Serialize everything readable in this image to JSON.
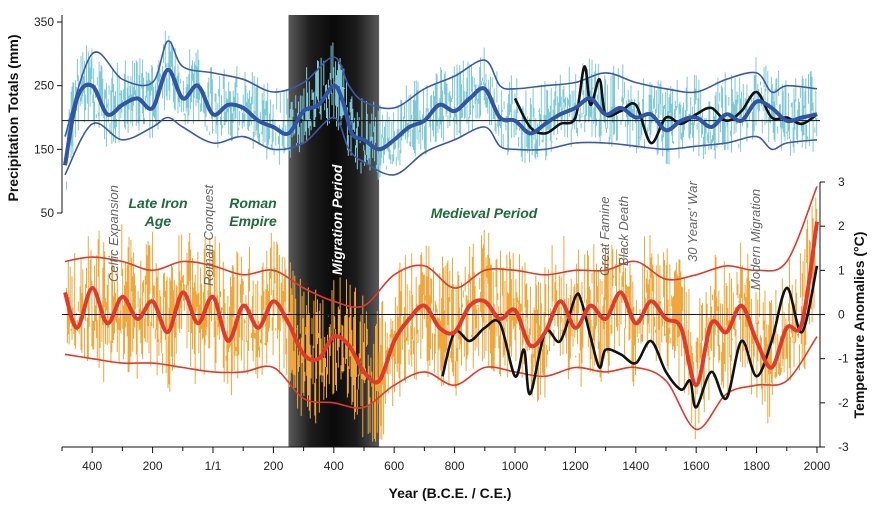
{
  "chart_data": {
    "type": "line",
    "title": "",
    "xlabel": "Year (B.C.E. / C.E.)",
    "x_ticks": [
      "400",
      "200",
      "1/1",
      "200",
      "400",
      "600",
      "800",
      "1000",
      "1200",
      "1400",
      "1600",
      "1800",
      "2000"
    ],
    "x_tick_years": [
      -400,
      -200,
      0,
      200,
      400,
      600,
      800,
      1000,
      1200,
      1400,
      1600,
      1800,
      2000
    ],
    "xlim": [
      -500,
      2010
    ],
    "precipitation": {
      "ylabel": "Precipitation Totals (mm)",
      "ylim": [
        50,
        350
      ],
      "y_ticks": [
        350,
        250,
        150,
        50
      ],
      "reference_line": 195,
      "series": [
        {
          "name": "Precipitation smoothed",
          "color": "#2f55a4",
          "x": [
            -490,
            -450,
            -400,
            -350,
            -300,
            -250,
            -200,
            -150,
            -100,
            -50,
            0,
            50,
            100,
            150,
            200,
            250,
            300,
            350,
            400,
            430,
            460,
            500,
            550,
            600,
            650,
            700,
            750,
            800,
            850,
            900,
            950,
            1000,
            1050,
            1100,
            1150,
            1200,
            1250,
            1300,
            1350,
            1400,
            1450,
            1500,
            1550,
            1600,
            1650,
            1700,
            1750,
            1800,
            1850,
            1900,
            1950,
            2000
          ],
          "values": [
            125,
            230,
            250,
            205,
            220,
            230,
            215,
            275,
            230,
            250,
            205,
            220,
            215,
            195,
            185,
            175,
            210,
            220,
            250,
            225,
            175,
            165,
            150,
            165,
            185,
            195,
            220,
            210,
            230,
            245,
            200,
            195,
            175,
            190,
            205,
            215,
            230,
            205,
            215,
            200,
            205,
            180,
            195,
            200,
            185,
            205,
            195,
            225,
            215,
            195,
            200,
            205
          ]
        },
        {
          "name": "Precipitation upper band",
          "color": "#3a5aa8",
          "x": [
            -490,
            -400,
            -300,
            -200,
            -150,
            -100,
            0,
            100,
            200,
            300,
            400,
            450,
            500,
            600,
            700,
            800,
            900,
            950,
            1000,
            1100,
            1200,
            1300,
            1400,
            1500,
            1600,
            1700,
            1800,
            1850,
            1900,
            2000
          ],
          "values": [
            170,
            300,
            260,
            255,
            320,
            280,
            270,
            260,
            240,
            255,
            295,
            250,
            225,
            215,
            245,
            265,
            290,
            250,
            245,
            250,
            255,
            270,
            255,
            245,
            240,
            260,
            270,
            240,
            250,
            245
          ]
        },
        {
          "name": "Precipitation lower band",
          "color": "#3a5aa8",
          "x": [
            -490,
            -400,
            -300,
            -200,
            -150,
            -100,
            0,
            100,
            200,
            300,
            400,
            450,
            500,
            600,
            700,
            800,
            900,
            950,
            1000,
            1100,
            1200,
            1300,
            1400,
            1500,
            1600,
            1700,
            1800,
            1850,
            1900,
            2000
          ],
          "values": [
            110,
            190,
            165,
            185,
            200,
            185,
            160,
            170,
            150,
            160,
            200,
            150,
            130,
            110,
            145,
            165,
            185,
            155,
            150,
            150,
            160,
            160,
            155,
            150,
            155,
            160,
            170,
            150,
            160,
            165
          ]
        },
        {
          "name": "Precipitation instrumental",
          "color": "#111111",
          "x": [
            1000,
            1050,
            1100,
            1150,
            1200,
            1230,
            1250,
            1280,
            1300,
            1350,
            1400,
            1450,
            1500,
            1550,
            1600,
            1650,
            1700,
            1750,
            1800,
            1850,
            1900,
            1950,
            2000
          ],
          "values": [
            230,
            185,
            175,
            190,
            200,
            280,
            220,
            260,
            205,
            210,
            220,
            160,
            200,
            190,
            205,
            215,
            195,
            210,
            240,
            200,
            200,
            190,
            205
          ]
        }
      ]
    },
    "temperature": {
      "ylabel": "Temperature Anomalies (°C)",
      "ylim": [
        -3,
        3
      ],
      "y_ticks": [
        3,
        2,
        1,
        0,
        -1,
        -2,
        -3
      ],
      "reference_line": 0,
      "series": [
        {
          "name": "Temperature smoothed",
          "color": "#e03a2a",
          "x": [
            -490,
            -450,
            -400,
            -350,
            -300,
            -250,
            -200,
            -150,
            -100,
            -50,
            0,
            50,
            100,
            150,
            200,
            250,
            300,
            350,
            400,
            450,
            500,
            550,
            600,
            650,
            700,
            750,
            800,
            850,
            900,
            950,
            1000,
            1050,
            1100,
            1150,
            1200,
            1250,
            1300,
            1350,
            1400,
            1450,
            1500,
            1550,
            1600,
            1650,
            1700,
            1750,
            1800,
            1850,
            1900,
            1950,
            2000
          ],
          "values": [
            0.5,
            -0.3,
            0.6,
            -0.2,
            0.4,
            -0.1,
            0.3,
            -0.4,
            0.5,
            -0.2,
            0.4,
            -0.6,
            0.2,
            -0.3,
            0.3,
            -0.2,
            -0.9,
            -1.0,
            -0.5,
            -0.7,
            -1.3,
            -1.5,
            -0.6,
            -0.1,
            0.2,
            -0.3,
            -0.4,
            0.2,
            0.3,
            -0.1,
            0.1,
            -0.7,
            -0.4,
            0.3,
            -0.3,
            0.2,
            -0.1,
            0.5,
            -0.2,
            0.3,
            -0.1,
            -0.3,
            -1.6,
            -0.2,
            -0.4,
            0.2,
            -0.6,
            -1.2,
            -0.3,
            -0.2,
            2.1
          ]
        },
        {
          "name": "Temperature upper band",
          "color": "#e03a2a",
          "x": [
            -490,
            -400,
            -300,
            -200,
            -100,
            0,
            100,
            200,
            300,
            400,
            500,
            600,
            700,
            800,
            900,
            1000,
            1100,
            1200,
            1300,
            1400,
            1500,
            1600,
            1700,
            1800,
            1900,
            2000
          ],
          "values": [
            1.2,
            1.3,
            1.2,
            1.0,
            1.2,
            1.1,
            0.9,
            1.0,
            0.6,
            0.3,
            0.2,
            0.9,
            1.1,
            0.6,
            1.0,
            1.0,
            0.9,
            1.0,
            1.0,
            1.2,
            0.8,
            0.9,
            1.1,
            1.0,
            1.2,
            2.9
          ]
        },
        {
          "name": "Temperature lower band",
          "color": "#e03a2a",
          "x": [
            -490,
            -400,
            -300,
            -200,
            -100,
            0,
            100,
            200,
            300,
            400,
            500,
            600,
            700,
            800,
            900,
            1000,
            1100,
            1200,
            1300,
            1400,
            1500,
            1600,
            1700,
            1800,
            1900,
            2000
          ],
          "values": [
            -0.9,
            -1.0,
            -1.1,
            -1.1,
            -1.2,
            -1.3,
            -1.3,
            -1.2,
            -1.9,
            -2.0,
            -2.1,
            -1.6,
            -1.3,
            -1.6,
            -1.2,
            -1.3,
            -1.4,
            -1.2,
            -1.3,
            -1.2,
            -1.5,
            -2.6,
            -1.8,
            -1.6,
            -1.5,
            -0.5
          ]
        },
        {
          "name": "Temperature instrumental",
          "color": "#111111",
          "x": [
            760,
            800,
            850,
            900,
            950,
            1000,
            1030,
            1050,
            1100,
            1150,
            1200,
            1220,
            1250,
            1280,
            1300,
            1350,
            1400,
            1450,
            1500,
            1550,
            1580,
            1600,
            1650,
            1700,
            1750,
            1800,
            1850,
            1900,
            1950,
            2000
          ],
          "values": [
            -1.4,
            -0.4,
            -0.6,
            -0.3,
            -0.2,
            -1.4,
            -0.8,
            -1.8,
            -0.4,
            -0.6,
            0.4,
            0.3,
            -0.5,
            -1.2,
            -0.8,
            -0.9,
            -1.1,
            -0.6,
            -1.3,
            -1.7,
            -1.5,
            -2.1,
            -1.3,
            -1.9,
            -0.6,
            -1.4,
            -0.6,
            0.6,
            -0.4,
            1.1
          ]
        }
      ]
    },
    "shaded_period": {
      "label": "Migration Period",
      "from": 250,
      "to": 550
    },
    "annotations": [
      {
        "text": "Celtic Expansion",
        "style": "event",
        "year": -420
      },
      {
        "text": "Late Iron",
        "style": "era",
        "year": -240
      },
      {
        "text": "Age",
        "style": "era",
        "year": -240
      },
      {
        "text": "Roman Conquest",
        "style": "event",
        "year": 30
      },
      {
        "text": "Roman",
        "style": "era",
        "year": 160
      },
      {
        "text": "Empire",
        "style": "era",
        "year": 160
      },
      {
        "text": "Medieval Period",
        "style": "era",
        "year": 950
      },
      {
        "text": "Great Famine",
        "style": "event",
        "year": 1300
      },
      {
        "text": "Black Death",
        "style": "event",
        "year": 1370
      },
      {
        "text": "30 Years' War",
        "style": "event",
        "year": 1640
      },
      {
        "text": "Modern Migration",
        "style": "event",
        "year": 1820
      }
    ]
  }
}
